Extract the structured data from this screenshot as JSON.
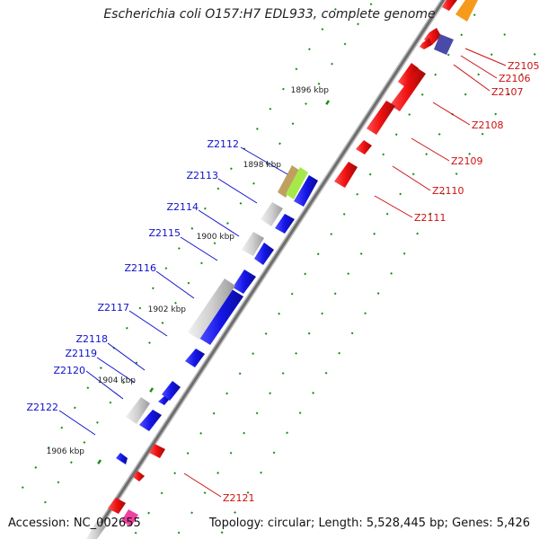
{
  "title": "Escherichia coli O157:H7 EDL933, complete genome",
  "accession_text": "Accession: NC_002655",
  "topology_text": "Topology: circular; Length: 5,528,445 bp; Genes: 5,426",
  "colors": {
    "backbone": "#808080",
    "forward_gene": "#1010e0",
    "reverse_gene": "#ee1010",
    "pseudo_gene": "#c8c8c8",
    "tick": "#1a8a1a",
    "forward_label": "#1010cc",
    "reverse_label": "#cc1010"
  },
  "scale_labels": [
    "1896 kbp",
    "1898 kbp",
    "1900 kbp",
    "1902 kbp",
    "1904 kbp",
    "1906 kbp"
  ],
  "forward_genes": [
    "Z2112",
    "Z2113",
    "Z2114",
    "Z2115",
    "Z2116",
    "Z2117",
    "Z2118",
    "Z2119",
    "Z2120",
    "Z2122"
  ],
  "reverse_genes": [
    "Z2105",
    "Z2106",
    "Z2107",
    "Z2108",
    "Z2109",
    "Z2110",
    "Z2111",
    "Z2121"
  ]
}
